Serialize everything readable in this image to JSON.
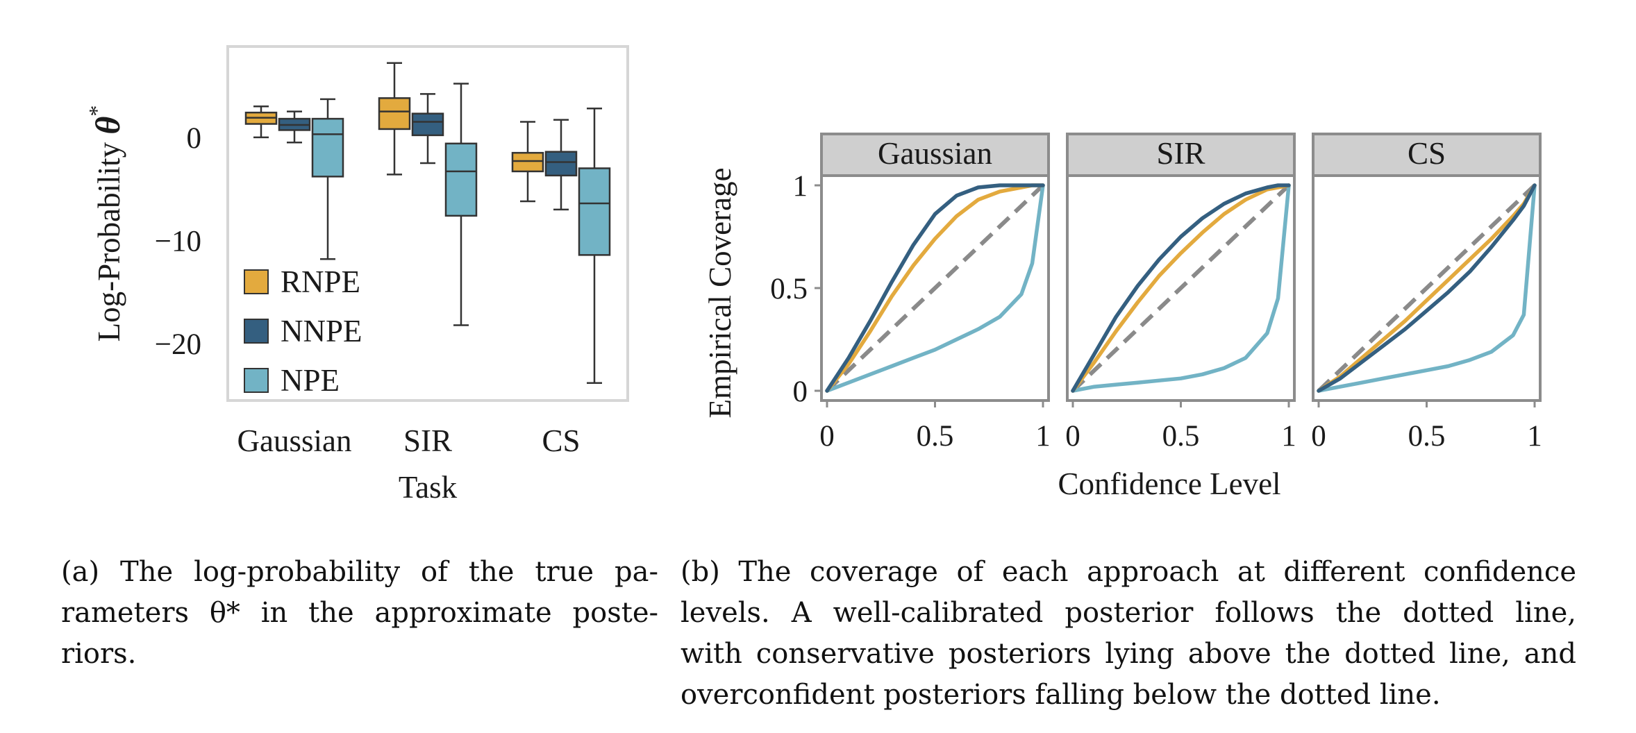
{
  "figure_a": {
    "ylabel_prefix": "Log-Probability ",
    "ylabel_symbol": "θ",
    "ylabel_sup": "*",
    "xlabel": "Task",
    "yticks": [
      0,
      -10,
      -20
    ],
    "ytick_labels": [
      "0",
      "−10",
      "−20"
    ],
    "legend": [
      "RNPE",
      "NNPE",
      "NPE"
    ]
  },
  "figure_b": {
    "ylabel": "Empirical Coverage",
    "xlabel": "Confidence Level",
    "panels": [
      "Gaussian",
      "SIR",
      "CS"
    ],
    "ytick_labels": [
      "0",
      "0.5",
      "1"
    ],
    "xtick_labels": [
      "0",
      "0.5",
      "1"
    ]
  },
  "colors": {
    "RNPE": "#e3aa3e",
    "NNPE": "#345f80",
    "NPE": "#72b3c5",
    "diagonal": "#8a8a8a",
    "strip": "#cfcfcf",
    "frame": "#8c8c8c"
  },
  "captions": {
    "a": [
      "(a) The log-probability of the true pa-",
      "rameters θ* in the approximate poste-",
      "riors."
    ],
    "b": [
      "(b) The coverage of each approach at different confidence",
      "levels.  A well-calibrated posterior follows the dotted line,",
      "with conservative posteriors lying above the dotted line, and",
      "overconfident posteriors falling below the dotted line."
    ]
  },
  "chart_data": [
    {
      "type": "box",
      "title": "",
      "xlabel": "Task",
      "ylabel": "Log-Probability θ*",
      "categories": [
        "Gaussian",
        "SIR",
        "CS"
      ],
      "ylim": [
        -25.5,
        8.8
      ],
      "legend_position": "bottom-left",
      "series": [
        {
          "name": "RNPE",
          "boxes": [
            {
              "whislo": 0.0,
              "q1": 1.3,
              "med": 1.9,
              "q3": 2.4,
              "whishi": 3.0
            },
            {
              "whislo": -3.6,
              "q1": 0.8,
              "med": 2.5,
              "q3": 3.8,
              "whishi": 7.2
            },
            {
              "whislo": -6.2,
              "q1": -3.3,
              "med": -2.3,
              "q3": -1.5,
              "whishi": 1.5
            }
          ]
        },
        {
          "name": "NNPE",
          "boxes": [
            {
              "whislo": -0.5,
              "q1": 0.7,
              "med": 1.2,
              "q3": 1.8,
              "whishi": 2.5
            },
            {
              "whislo": -2.5,
              "q1": 0.2,
              "med": 1.5,
              "q3": 2.3,
              "whishi": 4.2
            },
            {
              "whislo": -7.0,
              "q1": -3.7,
              "med": -2.4,
              "q3": -1.4,
              "whishi": 1.7
            }
          ]
        },
        {
          "name": "NPE",
          "boxes": [
            {
              "whislo": -11.8,
              "q1": -3.8,
              "med": 0.3,
              "q3": 1.8,
              "whishi": 3.7
            },
            {
              "whislo": -18.2,
              "q1": -7.6,
              "med": -3.3,
              "q3": -0.6,
              "whishi": 5.2
            },
            {
              "whislo": -23.8,
              "q1": -11.4,
              "med": -6.4,
              "q3": -3.0,
              "whishi": 2.8
            }
          ]
        }
      ]
    },
    {
      "type": "line",
      "title": "",
      "xlabel": "Confidence Level",
      "ylabel": "Empirical Coverage",
      "xlim": [
        0,
        1
      ],
      "ylim": [
        0,
        1
      ],
      "x": [
        0,
        0.1,
        0.2,
        0.3,
        0.4,
        0.5,
        0.6,
        0.7,
        0.8,
        0.9,
        0.95,
        1.0
      ],
      "panels": [
        {
          "name": "Gaussian",
          "series": [
            {
              "name": "RNPE",
              "values": [
                0,
                0.13,
                0.29,
                0.46,
                0.61,
                0.74,
                0.85,
                0.93,
                0.97,
                0.99,
                1.0,
                1.0
              ]
            },
            {
              "name": "NNPE",
              "values": [
                0,
                0.16,
                0.34,
                0.53,
                0.71,
                0.86,
                0.95,
                0.99,
                1.0,
                1.0,
                1.0,
                1.0
              ]
            },
            {
              "name": "NPE",
              "values": [
                0,
                0.04,
                0.08,
                0.12,
                0.16,
                0.2,
                0.25,
                0.3,
                0.36,
                0.47,
                0.62,
                1.0
              ]
            }
          ]
        },
        {
          "name": "SIR",
          "series": [
            {
              "name": "RNPE",
              "values": [
                0,
                0.14,
                0.29,
                0.43,
                0.56,
                0.67,
                0.77,
                0.86,
                0.93,
                0.98,
                0.99,
                1.0
              ]
            },
            {
              "name": "NNPE",
              "values": [
                0,
                0.18,
                0.36,
                0.51,
                0.64,
                0.75,
                0.84,
                0.91,
                0.96,
                0.99,
                1.0,
                1.0
              ]
            },
            {
              "name": "NPE",
              "values": [
                0,
                0.02,
                0.03,
                0.04,
                0.05,
                0.06,
                0.08,
                0.11,
                0.16,
                0.28,
                0.45,
                1.0
              ]
            }
          ]
        },
        {
          "name": "CS",
          "series": [
            {
              "name": "RNPE",
              "values": [
                0,
                0.07,
                0.16,
                0.25,
                0.34,
                0.44,
                0.54,
                0.64,
                0.74,
                0.85,
                0.91,
                1.0
              ]
            },
            {
              "name": "NNPE",
              "values": [
                0,
                0.06,
                0.14,
                0.22,
                0.3,
                0.39,
                0.48,
                0.58,
                0.7,
                0.83,
                0.9,
                1.0
              ]
            },
            {
              "name": "NPE",
              "values": [
                0,
                0.02,
                0.04,
                0.06,
                0.08,
                0.1,
                0.12,
                0.15,
                0.19,
                0.27,
                0.37,
                1.0
              ]
            }
          ]
        }
      ],
      "reference": {
        "name": "",
        "style": "dashed",
        "x": [
          0,
          1
        ],
        "y": [
          0,
          1
        ]
      }
    }
  ]
}
